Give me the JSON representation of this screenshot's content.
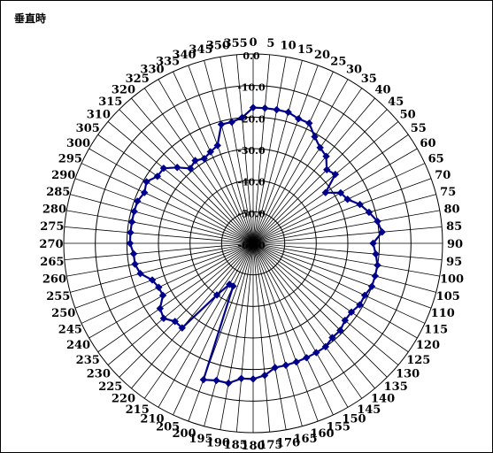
{
  "page": {
    "title": "垂直時"
  },
  "chart_data": {
    "type": "polar-line",
    "title": "垂直時",
    "angles_deg": [
      0,
      5,
      10,
      15,
      20,
      25,
      30,
      35,
      40,
      45,
      50,
      55,
      60,
      65,
      70,
      75,
      80,
      85,
      90,
      95,
      100,
      105,
      110,
      115,
      120,
      125,
      130,
      135,
      140,
      145,
      150,
      155,
      160,
      165,
      170,
      175,
      180,
      185,
      190,
      195,
      200,
      205,
      210,
      215,
      220,
      225,
      230,
      235,
      240,
      245,
      250,
      255,
      260,
      265,
      270,
      275,
      280,
      285,
      290,
      295,
      300,
      305,
      310,
      315,
      320,
      325,
      330,
      335,
      340,
      345,
      350,
      355
    ],
    "angle_tick_labels": [
      "0",
      "5",
      "10",
      "15",
      "20",
      "25",
      "30",
      "35",
      "40",
      "45",
      "50",
      "55",
      "60",
      "65",
      "70",
      "75",
      "80",
      "85",
      "90",
      "95",
      "100",
      "105",
      "110",
      "115",
      "120",
      "125",
      "130",
      "135",
      "140",
      "145",
      "150",
      "155",
      "160",
      "165",
      "170",
      "175",
      "180",
      "185",
      "190",
      "195",
      "200",
      "205",
      "210",
      "215",
      "220",
      "225",
      "230",
      "235",
      "240",
      "245",
      "250",
      "255",
      "260",
      "265",
      "270",
      "275",
      "280",
      "285",
      "290",
      "295",
      "300",
      "305",
      "310",
      "315",
      "320",
      "325",
      "330",
      "335",
      "340",
      "345",
      "350",
      "355"
    ],
    "radial_axis": {
      "min": -60,
      "max": 0,
      "step": 10,
      "tick_labels": [
        "0.0",
        "-10.0",
        "-20.0",
        "-30.0",
        "-40.0",
        "-50.0",
        "-60.0"
      ]
    },
    "series": [
      {
        "color": "#00008b",
        "marker": "diamond",
        "values": [
          -17,
          -17,
          -17,
          -17,
          -18,
          -18,
          -21,
          -23,
          -24,
          -27,
          -26,
          -32,
          -28,
          -27,
          -24,
          -22,
          -20,
          -19,
          -22,
          -21,
          -20,
          -20,
          -20,
          -21,
          -21,
          -22,
          -22,
          -21,
          -21,
          -20,
          -20,
          -20,
          -20,
          -20,
          -20,
          -18,
          -17,
          -17,
          -15,
          -15,
          -14,
          -45,
          -45,
          -40,
          -25,
          -25,
          -23,
          -24,
          -27,
          -27,
          -26,
          -23,
          -22,
          -22,
          -21,
          -21,
          -21,
          -21,
          -21,
          -22,
          -21,
          -23,
          -23,
          -26,
          -29,
          -28,
          -29,
          -28,
          -27,
          -21,
          -21,
          -20
        ]
      }
    ],
    "grid": true,
    "legend": "none"
  }
}
